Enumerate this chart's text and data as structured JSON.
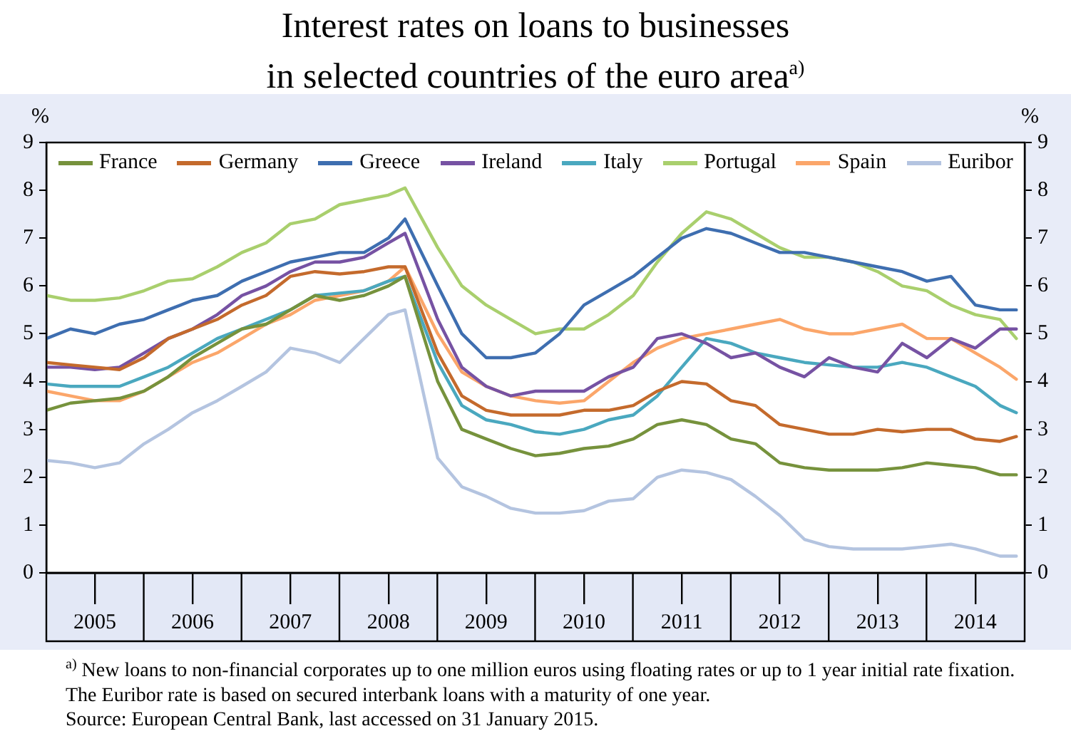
{
  "chart_data": {
    "type": "line",
    "title": "Interest rates on loans to businesses\nin selected countries of the euro area$^{a)}$",
    "ylabel": "%",
    "y2label": "%",
    "x": [
      "2005-01",
      "2005-04",
      "2005-07",
      "2005-10",
      "2006-01",
      "2006-04",
      "2006-07",
      "2006-10",
      "2007-01",
      "2007-04",
      "2007-07",
      "2007-10",
      "2008-01",
      "2008-04",
      "2008-07",
      "2008-09",
      "2009-01",
      "2009-04",
      "2009-07",
      "2009-10",
      "2010-01",
      "2010-04",
      "2010-07",
      "2010-10",
      "2011-01",
      "2011-04",
      "2011-07",
      "2011-10",
      "2012-01",
      "2012-04",
      "2012-07",
      "2012-10",
      "2013-01",
      "2013-04",
      "2013-07",
      "2013-10",
      "2014-01",
      "2014-04",
      "2014-07",
      "2014-10",
      "2014-12"
    ],
    "series": [
      {
        "name": "France",
        "color": "#76923c",
        "values": [
          3.4,
          3.55,
          3.6,
          3.65,
          3.8,
          4.1,
          4.5,
          4.8,
          5.1,
          5.2,
          5.5,
          5.8,
          5.7,
          5.8,
          6.0,
          6.2,
          4.0,
          3.0,
          2.8,
          2.6,
          2.45,
          2.5,
          2.6,
          2.65,
          2.8,
          3.1,
          3.2,
          3.1,
          2.8,
          2.7,
          2.3,
          2.2,
          2.15,
          2.15,
          2.15,
          2.2,
          2.3,
          2.25,
          2.2,
          2.05,
          2.05
        ]
      },
      {
        "name": "Germany",
        "color": "#c46a2c",
        "values": [
          4.4,
          4.35,
          4.3,
          4.25,
          4.5,
          4.9,
          5.1,
          5.3,
          5.6,
          5.8,
          6.2,
          6.3,
          6.25,
          6.3,
          6.4,
          6.4,
          4.6,
          3.7,
          3.4,
          3.3,
          3.3,
          3.3,
          3.4,
          3.4,
          3.5,
          3.8,
          4.0,
          3.95,
          3.6,
          3.5,
          3.1,
          3.0,
          2.9,
          2.9,
          3.0,
          2.95,
          3.0,
          3.0,
          2.8,
          2.75,
          2.85
        ]
      },
      {
        "name": "Greece",
        "color": "#3e6eb0",
        "values": [
          4.9,
          5.1,
          5.0,
          5.2,
          5.3,
          5.5,
          5.7,
          5.8,
          6.1,
          6.3,
          6.5,
          6.6,
          6.7,
          6.7,
          7.0,
          7.4,
          6.0,
          5.0,
          4.5,
          4.5,
          4.6,
          5.0,
          5.6,
          5.9,
          6.2,
          6.6,
          7.0,
          7.2,
          7.1,
          6.9,
          6.7,
          6.7,
          6.6,
          6.5,
          6.4,
          6.3,
          6.1,
          6.2,
          5.6,
          5.5,
          5.5
        ]
      },
      {
        "name": "Ireland",
        "color": "#7652a3",
        "values": [
          4.3,
          4.3,
          4.25,
          4.3,
          4.6,
          4.9,
          5.1,
          5.4,
          5.8,
          6.0,
          6.3,
          6.5,
          6.5,
          6.6,
          6.9,
          7.1,
          5.3,
          4.3,
          3.9,
          3.7,
          3.8,
          3.8,
          3.8,
          4.1,
          4.3,
          4.9,
          5.0,
          4.8,
          4.5,
          4.6,
          4.3,
          4.1,
          4.5,
          4.3,
          4.2,
          4.8,
          4.5,
          4.9,
          4.7,
          5.1,
          5.1
        ]
      },
      {
        "name": "Italy",
        "color": "#4aa8bf",
        "values": [
          3.95,
          3.9,
          3.9,
          3.9,
          4.1,
          4.3,
          4.6,
          4.9,
          5.1,
          5.3,
          5.5,
          5.8,
          5.85,
          5.9,
          6.1,
          6.2,
          4.4,
          3.5,
          3.2,
          3.1,
          2.95,
          2.9,
          3.0,
          3.2,
          3.3,
          3.7,
          4.3,
          4.9,
          4.8,
          4.6,
          4.5,
          4.4,
          4.35,
          4.3,
          4.3,
          4.4,
          4.3,
          4.1,
          3.9,
          3.5,
          3.35
        ]
      },
      {
        "name": "Portugal",
        "color": "#a9cf6d",
        "values": [
          5.8,
          5.7,
          5.7,
          5.75,
          5.9,
          6.1,
          6.15,
          6.4,
          6.7,
          6.9,
          7.3,
          7.4,
          7.7,
          7.8,
          7.9,
          8.05,
          6.8,
          6.0,
          5.6,
          5.3,
          5.0,
          5.1,
          5.1,
          5.4,
          5.8,
          6.5,
          7.1,
          7.55,
          7.4,
          7.1,
          6.8,
          6.6,
          6.6,
          6.5,
          6.3,
          6.0,
          5.9,
          5.6,
          5.4,
          5.3,
          4.9
        ]
      },
      {
        "name": "Spain",
        "color": "#fba66a",
        "values": [
          3.8,
          3.7,
          3.6,
          3.6,
          3.8,
          4.1,
          4.4,
          4.6,
          4.9,
          5.2,
          5.4,
          5.7,
          5.8,
          5.9,
          6.1,
          6.4,
          5.0,
          4.2,
          3.9,
          3.7,
          3.6,
          3.55,
          3.6,
          4.0,
          4.4,
          4.7,
          4.9,
          5.0,
          5.1,
          5.2,
          5.3,
          5.1,
          5.0,
          5.0,
          5.1,
          5.2,
          4.9,
          4.9,
          4.6,
          4.3,
          4.05
        ]
      },
      {
        "name": "Euribor",
        "color": "#b4c4e0",
        "values": [
          2.35,
          2.3,
          2.2,
          2.3,
          2.7,
          3.0,
          3.35,
          3.6,
          3.9,
          4.2,
          4.7,
          4.6,
          4.4,
          4.9,
          5.4,
          5.5,
          2.4,
          1.8,
          1.6,
          1.35,
          1.25,
          1.25,
          1.3,
          1.5,
          1.55,
          2.0,
          2.15,
          2.1,
          1.95,
          1.6,
          1.2,
          0.7,
          0.55,
          0.5,
          0.5,
          0.5,
          0.55,
          0.6,
          0.5,
          0.35,
          0.35
        ]
      }
    ],
    "xlim": [
      "2005-01",
      "2015-01"
    ],
    "xticks": [
      {
        "value": "2005-07",
        "label": "2005"
      },
      {
        "value": "2006-07",
        "label": "2006"
      },
      {
        "value": "2007-07",
        "label": "2007"
      },
      {
        "value": "2008-07",
        "label": "2008"
      },
      {
        "value": "2009-07",
        "label": "2009"
      },
      {
        "value": "2010-07",
        "label": "2010"
      },
      {
        "value": "2011-07",
        "label": "2011"
      },
      {
        "value": "2012-07",
        "label": "2012"
      },
      {
        "value": "2013-07",
        "label": "2013"
      },
      {
        "value": "2014-07",
        "label": "2014"
      }
    ],
    "ylim": [
      0,
      9
    ],
    "yticks": [
      0,
      1,
      2,
      3,
      4,
      5,
      6,
      7,
      8,
      9
    ],
    "y2lim": [
      0,
      9
    ],
    "y2ticks": [
      0,
      1,
      2,
      3,
      4,
      5,
      6,
      7,
      8,
      9
    ],
    "legend": "top",
    "marker": "none",
    "line_style": "solid",
    "grid": false,
    "annotations": [
      "$^{a)}$ New loans to non-financial corporates  up to one million euros using floating rates or up to 1 year initial rate fixation. The Euribor rate is based on secured interbank loans with a maturity of one year.",
      "Source: European Central Bank, last accessed on 31 January 2015."
    ]
  }
}
